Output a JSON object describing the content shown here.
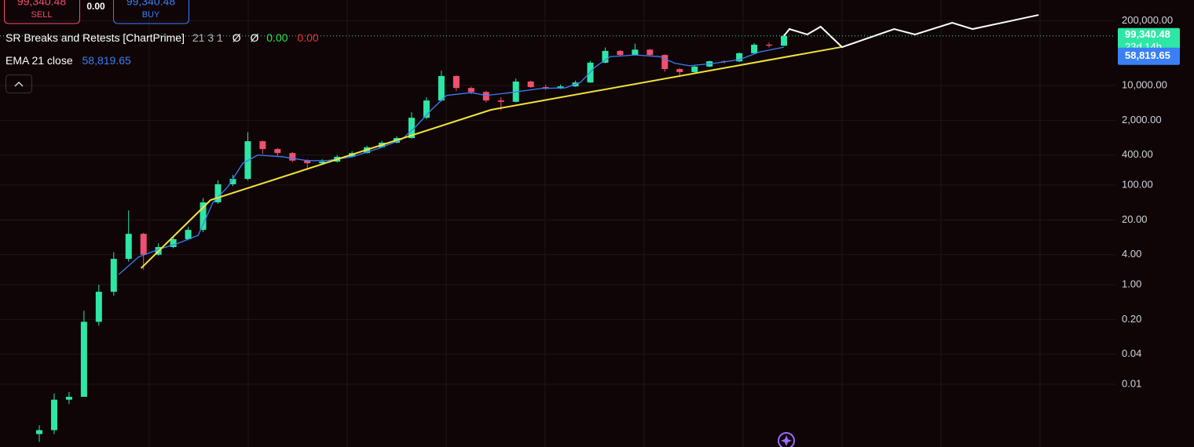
{
  "toolbar": {
    "sell_price": "99,340.48",
    "sell": "SELL",
    "spread": "0.00",
    "buy_price": "99,340.48",
    "buy": "BUY"
  },
  "indicators": [
    {
      "name": "SR Breaks and Retests [ChartPrime]",
      "params": "21 3 1",
      "symbols": [
        "Ø",
        "Ø"
      ],
      "value_up": "0.00",
      "value_down": "0.00"
    },
    {
      "name": "EMA 21 close",
      "value": "58,819.65"
    }
  ],
  "chart_data": {
    "type": "candlestick",
    "log_scale": true,
    "grid": true,
    "up_color": "#2ee6a6",
    "down_color": "#f0506e",
    "xlim": [
      -7.91,
      216.77
    ],
    "ylim": [
      0.00055,
      521000
    ],
    "yticks": [
      {
        "value": 200000,
        "label": "200,000.00"
      },
      {
        "value": 10000,
        "label": "10,000.00"
      },
      {
        "value": 2000,
        "label": "2,000.00"
      },
      {
        "value": 400,
        "label": "400.00"
      },
      {
        "value": 100,
        "label": "100.00"
      },
      {
        "value": 20,
        "label": "20.00"
      },
      {
        "value": 4,
        "label": "4.00"
      },
      {
        "value": 1,
        "label": "1.00"
      },
      {
        "value": 0.2,
        "label": "0.20"
      },
      {
        "value": 0.04,
        "label": "0.04"
      },
      {
        "value": 0.01,
        "label": "0.01"
      }
    ],
    "x": [
      0,
      3,
      6,
      9,
      12,
      15,
      18,
      21,
      24,
      27,
      30,
      33,
      36,
      39,
      42,
      45,
      48,
      51,
      54,
      57,
      60,
      63,
      66,
      69,
      72,
      75,
      78,
      81,
      84,
      87,
      90,
      93,
      96,
      99,
      102,
      105,
      108,
      111,
      114,
      117,
      120,
      123,
      126,
      129,
      132,
      135,
      138,
      141,
      144,
      147,
      150
    ],
    "open": [
      0.001,
      0.0012,
      0.0049,
      0.0056,
      0.18,
      0.72,
      3.3,
      10.5,
      4.0,
      5.7,
      8.2,
      12.6,
      45,
      104,
      133,
      760,
      530,
      440,
      310,
      275,
      296,
      370,
      440,
      575,
      710,
      880,
      2250,
      5000,
      15500,
      8900,
      7400,
      5000,
      4700,
      12000,
      9300,
      8700,
      9600,
      11500,
      28700,
      49500,
      41000,
      52500,
      41000,
      21400,
      18600,
      24000,
      30700,
      30500,
      44500,
      66000,
      63000
    ],
    "high": [
      0.0015,
      0.0065,
      0.007,
      0.3,
      1.0,
      4.5,
      31,
      11,
      6.8,
      9.5,
      14.5,
      55,
      125,
      160,
      1150,
      780,
      560,
      460,
      330,
      330,
      400,
      480,
      620,
      770,
      950,
      2900,
      5800,
      19800,
      16000,
      9500,
      7800,
      5800,
      13800,
      12500,
      10300,
      10500,
      12500,
      31000,
      58000,
      52000,
      69000,
      54000,
      42000,
      22500,
      25500,
      31500,
      32000,
      46000,
      71000,
      73000,
      108000
    ],
    "low": [
      0.0007,
      0.001,
      0.004,
      0.01,
      0.15,
      0.6,
      2.9,
      2.0,
      3.8,
      5.4,
      7.8,
      11.5,
      42,
      95,
      125,
      420,
      380,
      290,
      200,
      260,
      285,
      360,
      430,
      560,
      690,
      860,
      2100,
      4800,
      7800,
      6700,
      4600,
      3200,
      4600,
      9000,
      8200,
      8500,
      9400,
      11300,
      28000,
      39000,
      40000,
      38000,
      19000,
      15500,
      17600,
      23500,
      28000,
      29500,
      43500,
      58000,
      62000
    ],
    "close": [
      0.0012,
      0.0049,
      0.0056,
      0.18,
      0.72,
      3.3,
      10.5,
      4.0,
      5.7,
      8.2,
      12.6,
      45,
      104,
      133,
      760,
      530,
      440,
      310,
      275,
      296,
      370,
      440,
      575,
      710,
      880,
      2250,
      5000,
      15500,
      8900,
      7400,
      5000,
      4700,
      12000,
      9300,
      8700,
      9600,
      11500,
      28700,
      49500,
      41000,
      52500,
      41000,
      21400,
      18600,
      24000,
      30700,
      30500,
      44500,
      66000,
      63000,
      99340.48
    ],
    "last_price_label": "99,340.48",
    "countdown": "23d 14h",
    "price_line_color": "#2ee6a6",
    "lines": [
      {
        "name": "EMA 21 close",
        "color": "#3b7ff5",
        "value_label": "58,819.65",
        "x": [
          16,
          20,
          24,
          28,
          32,
          35,
          38,
          41,
          44,
          49,
          54,
          58,
          63,
          68,
          73,
          76,
          79,
          82,
          87,
          90,
          95,
          101,
          106,
          109,
          112,
          115,
          120,
          125,
          128,
          131,
          136,
          141,
          145,
          150
        ],
        "values": [
          1.6,
          3.6,
          5.1,
          6.8,
          9.8,
          45,
          93,
          275,
          400,
          370,
          310,
          310,
          370,
          530,
          820,
          1560,
          3250,
          6300,
          7200,
          6300,
          7200,
          8700,
          9000,
          11500,
          23700,
          38000,
          41000,
          38000,
          28000,
          24900,
          28000,
          33000,
          47000,
          58819.65
        ]
      },
      {
        "color": "#f2e33a",
        "x": [
          20.5,
          34.5,
          91,
          161.5
        ],
        "values": [
          2.14,
          50,
          3250,
          59000
        ]
      },
      {
        "color": "#ffffff",
        "x": [
          150,
          151.1,
          154.7,
          157.4,
          161.7,
          172.2,
          176.4,
          183.9,
          188,
          201.3
        ],
        "values": [
          99340.48,
          136000,
          106000,
          152000,
          59000,
          136000,
          106000,
          182000,
          136000,
          261000
        ]
      }
    ]
  }
}
